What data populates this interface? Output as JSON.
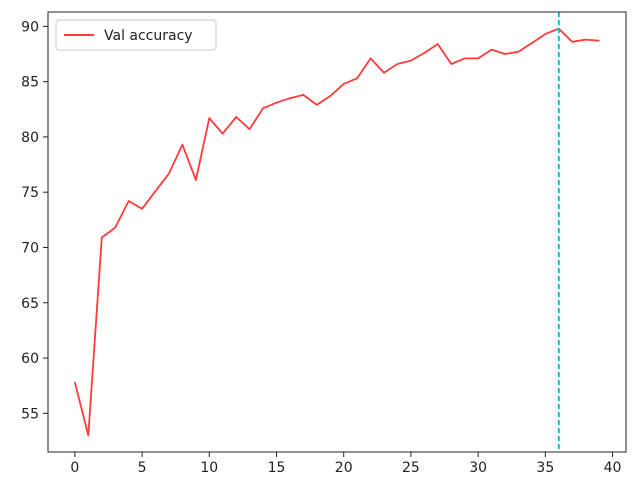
{
  "chart_data": {
    "type": "line",
    "title": "",
    "xlabel": "",
    "ylabel": "",
    "xlim": [
      -2.0,
      41.0
    ],
    "ylim": [
      51.5,
      91.3
    ],
    "xticks": [
      0,
      5,
      10,
      15,
      20,
      25,
      30,
      35,
      40
    ],
    "yticks": [
      55,
      60,
      65,
      70,
      75,
      80,
      85,
      90
    ],
    "grid": false,
    "legend_position": "top-left",
    "series": [
      {
        "name": "Val accuracy",
        "color": "#ff3b3b",
        "x": [
          0,
          1,
          2,
          3,
          4,
          5,
          6,
          7,
          8,
          9,
          10,
          11,
          12,
          13,
          14,
          15,
          16,
          17,
          18,
          19,
          20,
          21,
          22,
          23,
          24,
          25,
          26,
          27,
          28,
          29,
          30,
          31,
          32,
          33,
          34,
          35,
          36,
          37,
          38,
          39
        ],
        "y": [
          57.8,
          53.0,
          70.9,
          71.8,
          74.2,
          73.5,
          75.1,
          76.7,
          79.3,
          76.1,
          81.7,
          80.3,
          81.8,
          80.7,
          82.6,
          83.1,
          83.5,
          83.8,
          82.9,
          83.7,
          84.8,
          85.3,
          87.1,
          85.8,
          86.6,
          86.9,
          87.6,
          88.4,
          86.6,
          87.1,
          87.1,
          87.9,
          87.5,
          87.7,
          88.5,
          89.3,
          89.8,
          88.6,
          88.8,
          88.7
        ]
      }
    ],
    "vlines": [
      {
        "x": 36,
        "color": "#00b4d8",
        "style": "dashed"
      }
    ]
  }
}
